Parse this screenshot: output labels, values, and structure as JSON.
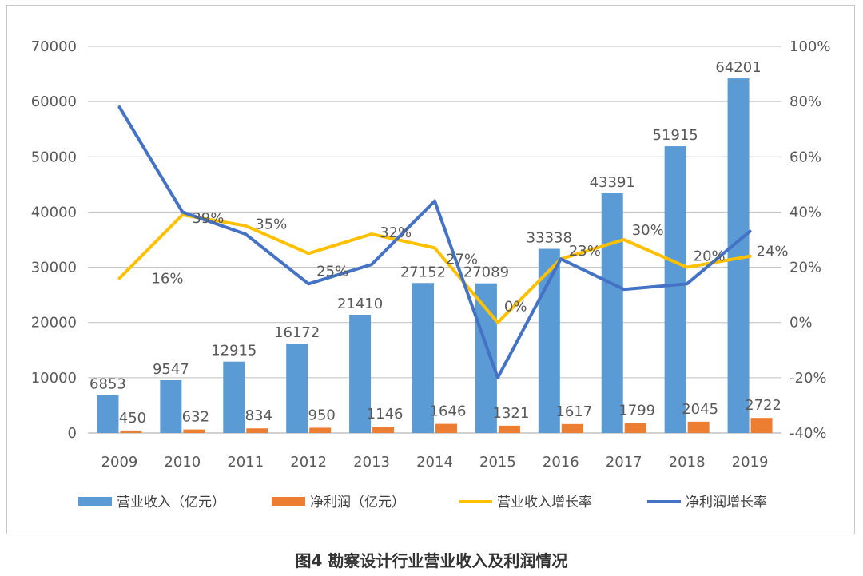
{
  "caption": "图4  勘察设计行业营业收入及利润情况",
  "colors": {
    "revenue": "#5b9bd5",
    "profit": "#ed7d31",
    "revenue_growth": "#ffc000",
    "profit_growth": "#4472c4",
    "grid": "#bfbfbf",
    "text": "#595959"
  },
  "chart_data": {
    "type": "bar",
    "categories": [
      "2009",
      "2010",
      "2011",
      "2012",
      "2013",
      "2014",
      "2015",
      "2016",
      "2017",
      "2018",
      "2019"
    ],
    "y_left_ticks": [
      "0",
      "10000",
      "20000",
      "30000",
      "40000",
      "50000",
      "60000",
      "70000"
    ],
    "y_left_range": [
      0,
      70000
    ],
    "y_right_ticks": [
      "-40%",
      "-20%",
      "0%",
      "20%",
      "40%",
      "60%",
      "80%",
      "100%"
    ],
    "y_right_range": [
      -40,
      100
    ],
    "grid": true,
    "legend_position": "bottom",
    "series": [
      {
        "name": "营业收入（亿元）",
        "type": "bar",
        "axis": "left",
        "values": [
          6853,
          9547,
          12915,
          16172,
          21410,
          27152,
          27089,
          33338,
          43391,
          51915,
          64201
        ],
        "labels": [
          "6853",
          "9547",
          "12915",
          "16172",
          "21410",
          "27152",
          "27089",
          "33338",
          "43391",
          "51915",
          "64201"
        ]
      },
      {
        "name": "净利润（亿元）",
        "type": "bar",
        "axis": "left",
        "values": [
          450,
          632,
          834,
          950,
          1146,
          1646,
          1321,
          1617,
          1799,
          2045,
          2722
        ],
        "labels": [
          "450",
          "632",
          "834",
          "950",
          "1146",
          "1646",
          "1321",
          "1617",
          "1799",
          "2045",
          "2722"
        ]
      },
      {
        "name": "营业收入增长率",
        "type": "line",
        "axis": "right",
        "values": [
          16,
          39,
          35,
          25,
          32,
          27,
          0,
          23,
          30,
          20,
          24
        ],
        "labels": [
          "16%",
          "39%",
          "35%",
          "25%",
          "32%",
          "27%",
          "0%",
          "23%",
          "30%",
          "20%",
          "24%"
        ]
      },
      {
        "name": "净利润增长率",
        "type": "line",
        "axis": "right",
        "values": [
          78,
          40,
          32,
          14,
          21,
          44,
          -20,
          23,
          12,
          14,
          33
        ]
      }
    ]
  }
}
